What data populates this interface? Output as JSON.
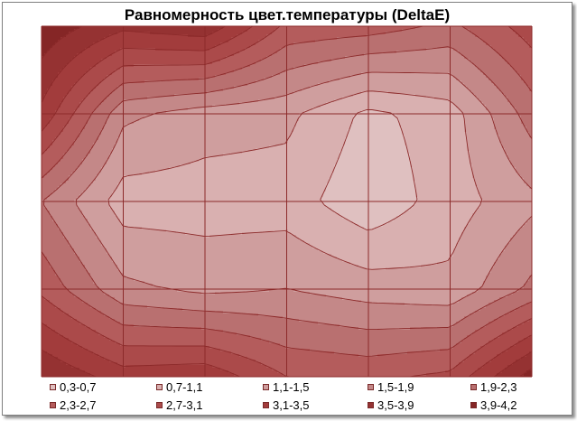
{
  "chart_data": {
    "type": "heatmap",
    "title": "Равномерность цвет.температуры (DeltaE)",
    "grid_columns": 7,
    "grid_rows": 5,
    "values": [
      [
        4.2,
        3.6,
        3.8,
        2.6,
        2.5,
        2.2,
        2.9
      ],
      [
        3.4,
        1.6,
        1.3,
        1.2,
        0.6,
        0.9,
        2.1
      ],
      [
        1.9,
        0.9,
        0.9,
        0.9,
        0.4,
        0.9,
        1.4
      ],
      [
        2.6,
        1.6,
        1.4,
        1.5,
        1.3,
        1.2,
        2.0
      ],
      [
        3.9,
        3.3,
        3.4,
        2.7,
        2.6,
        2.8,
        4.1
      ]
    ],
    "legend": [
      {
        "label": "0,3-0,7",
        "color": "#dfc0c0"
      },
      {
        "label": "0,7-1,1",
        "color": "#d9b0b0"
      },
      {
        "label": "1,1-1,5",
        "color": "#cf9e9e"
      },
      {
        "label": "1,5-1,9",
        "color": "#c48888"
      },
      {
        "label": "1,9-2,3",
        "color": "#b97070"
      },
      {
        "label": "2,3-2,7",
        "color": "#b45c5c"
      },
      {
        "label": "2,7-3,1",
        "color": "#ab4a4a"
      },
      {
        "label": "3,1-3,5",
        "color": "#a23c3c"
      },
      {
        "label": "3,5-3,9",
        "color": "#953232"
      },
      {
        "label": "3,9-4,2",
        "color": "#852626"
      }
    ],
    "legend_position": "bottom",
    "grid": true
  }
}
